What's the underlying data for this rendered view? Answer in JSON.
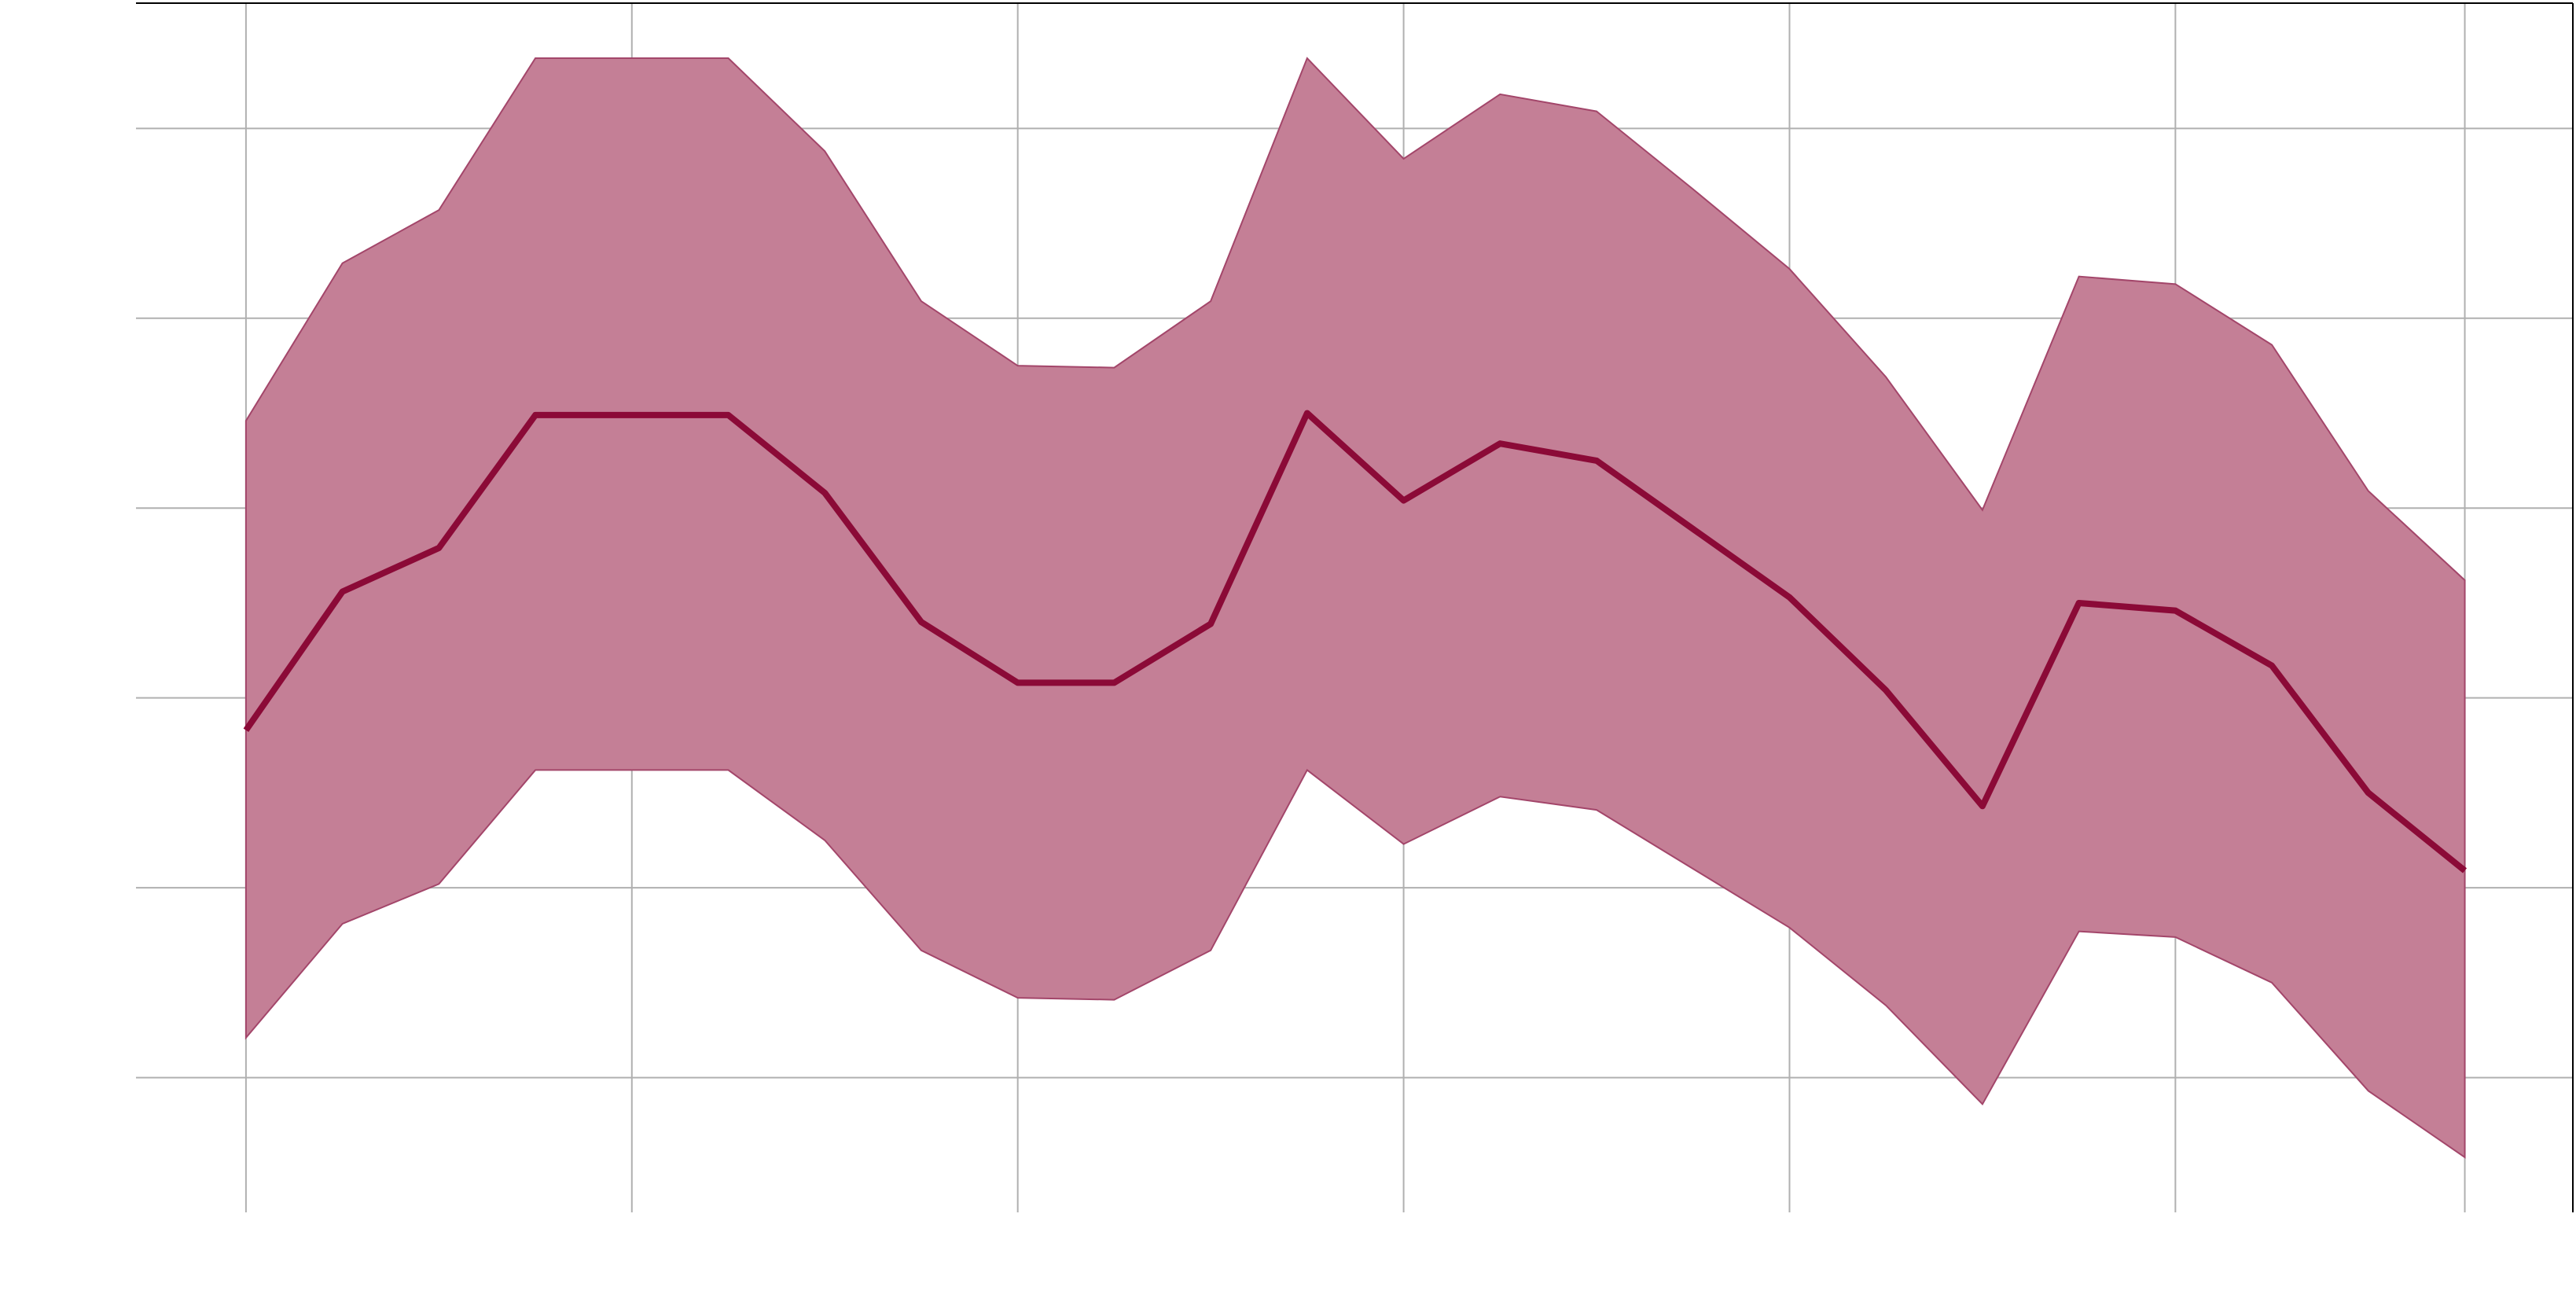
{
  "chart_data": {
    "type": "line",
    "x": [
      0,
      1,
      2,
      3,
      4,
      5,
      6,
      7,
      8,
      9,
      10,
      11,
      12,
      13,
      14,
      15,
      16,
      17,
      18,
      19,
      20,
      21,
      22,
      23
    ],
    "series": [
      {
        "color": "#8b0a37",
        "values": [
          1.83,
          2.56,
          2.79,
          3.49,
          3.49,
          3.49,
          3.08,
          2.4,
          2.08,
          2.08,
          2.39,
          3.5,
          3.04,
          3.34,
          3.25,
          2.89,
          2.53,
          2.04,
          1.43,
          2.5,
          2.46,
          2.17,
          1.5,
          1.09
        ]
      }
    ],
    "band": {
      "color": "#c47f96",
      "edge_color": "#a3466a",
      "upper": [
        3.46,
        4.29,
        4.57,
        5.37,
        5.37,
        5.37,
        4.88,
        4.09,
        3.75,
        3.74,
        4.09,
        5.37,
        4.84,
        5.18,
        5.09,
        4.68,
        4.26,
        3.69,
        2.99,
        4.22,
        4.18,
        3.86,
        3.09,
        2.62
      ],
      "lower": [
        0.21,
        0.81,
        1.02,
        1.62,
        1.62,
        1.62,
        1.25,
        0.67,
        0.42,
        0.41,
        0.67,
        1.62,
        1.23,
        1.48,
        1.41,
        1.1,
        0.79,
        0.38,
        -0.14,
        0.77,
        0.74,
        0.5,
        -0.07,
        -0.42
      ]
    },
    "xlim": [
      -1.14,
      24.12
    ],
    "xticks": [
      0,
      4,
      8,
      12,
      16,
      20,
      23
    ],
    "ylim": [
      -0.71,
      5.66
    ],
    "yticks": [
      0,
      1,
      2,
      3,
      4,
      5
    ],
    "grid": true
  }
}
